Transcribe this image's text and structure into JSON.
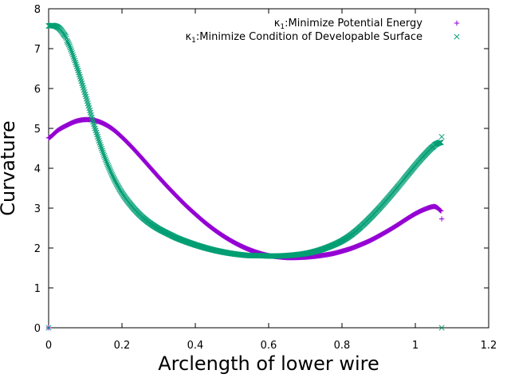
{
  "chart_data": {
    "type": "scatter",
    "xlabel": "Arclength of lower wire",
    "ylabel": "Curvature",
    "xlim": [
      0,
      1.2
    ],
    "ylim": [
      0,
      8
    ],
    "x_ticks": [
      "0",
      "0.2",
      "0.4",
      "0.6",
      "0.8",
      "1",
      "1.2"
    ],
    "y_ticks": [
      "0",
      "1",
      "2",
      "3",
      "4",
      "5",
      "6",
      "7",
      "8"
    ],
    "grid": false,
    "legend_position": "top-right",
    "series": [
      {
        "name": "κ1:Minimize Potential Energy",
        "label_main": "κ",
        "label_sub": "1",
        "label_rest": ":Minimize Potential Energy",
        "marker": "plus",
        "color": "#9400d3",
        "x": [
          0.0,
          0.025,
          0.05,
          0.075,
          0.1,
          0.125,
          0.15,
          0.175,
          0.2,
          0.225,
          0.25,
          0.275,
          0.3,
          0.325,
          0.35,
          0.375,
          0.4,
          0.425,
          0.45,
          0.475,
          0.5,
          0.525,
          0.55,
          0.575,
          0.6,
          0.625,
          0.65,
          0.675,
          0.7,
          0.725,
          0.75,
          0.775,
          0.8,
          0.825,
          0.85,
          0.875,
          0.9,
          0.925,
          0.95,
          0.975,
          1.0,
          1.025,
          1.05,
          1.06,
          1.07
        ],
        "y": [
          4.76,
          4.95,
          5.08,
          5.18,
          5.22,
          5.2,
          5.12,
          4.98,
          4.78,
          4.55,
          4.3,
          4.04,
          3.78,
          3.53,
          3.29,
          3.06,
          2.85,
          2.65,
          2.47,
          2.31,
          2.17,
          2.05,
          1.95,
          1.87,
          1.81,
          1.78,
          1.76,
          1.76,
          1.77,
          1.79,
          1.82,
          1.86,
          1.92,
          1.99,
          2.08,
          2.18,
          2.3,
          2.43,
          2.57,
          2.72,
          2.86,
          2.97,
          3.04,
          3.01,
          2.93
        ],
        "outliers": [
          [
            1.072,
            2.73
          ],
          [
            0.0,
            0.0
          ]
        ]
      },
      {
        "name": "κ1:Minimize Condition of Developable Surface",
        "label_main": "κ",
        "label_sub": "1",
        "label_rest": ":Minimize Condition of Developable Surface",
        "marker": "x",
        "color": "#009e73",
        "x": [
          0.0,
          0.01,
          0.02,
          0.03,
          0.04,
          0.05,
          0.075,
          0.1,
          0.125,
          0.15,
          0.175,
          0.2,
          0.225,
          0.25,
          0.275,
          0.3,
          0.325,
          0.35,
          0.375,
          0.4,
          0.425,
          0.45,
          0.475,
          0.5,
          0.525,
          0.55,
          0.575,
          0.6,
          0.625,
          0.65,
          0.675,
          0.7,
          0.725,
          0.75,
          0.775,
          0.8,
          0.825,
          0.85,
          0.875,
          0.9,
          0.925,
          0.95,
          0.975,
          1.0,
          1.025,
          1.05,
          1.06,
          1.07
        ],
        "y": [
          7.57,
          7.58,
          7.56,
          7.5,
          7.38,
          7.2,
          6.6,
          5.85,
          5.05,
          4.35,
          3.8,
          3.38,
          3.07,
          2.82,
          2.63,
          2.48,
          2.36,
          2.25,
          2.16,
          2.08,
          2.01,
          1.95,
          1.9,
          1.86,
          1.83,
          1.81,
          1.81,
          1.8,
          1.8,
          1.81,
          1.83,
          1.86,
          1.91,
          1.98,
          2.07,
          2.18,
          2.33,
          2.52,
          2.74,
          2.98,
          3.24,
          3.51,
          3.79,
          4.07,
          4.33,
          4.55,
          4.62,
          4.65
        ],
        "outliers": [
          [
            1.072,
            4.79
          ],
          [
            1.072,
            0.0
          ],
          [
            0.0,
            0.0
          ]
        ]
      }
    ]
  }
}
